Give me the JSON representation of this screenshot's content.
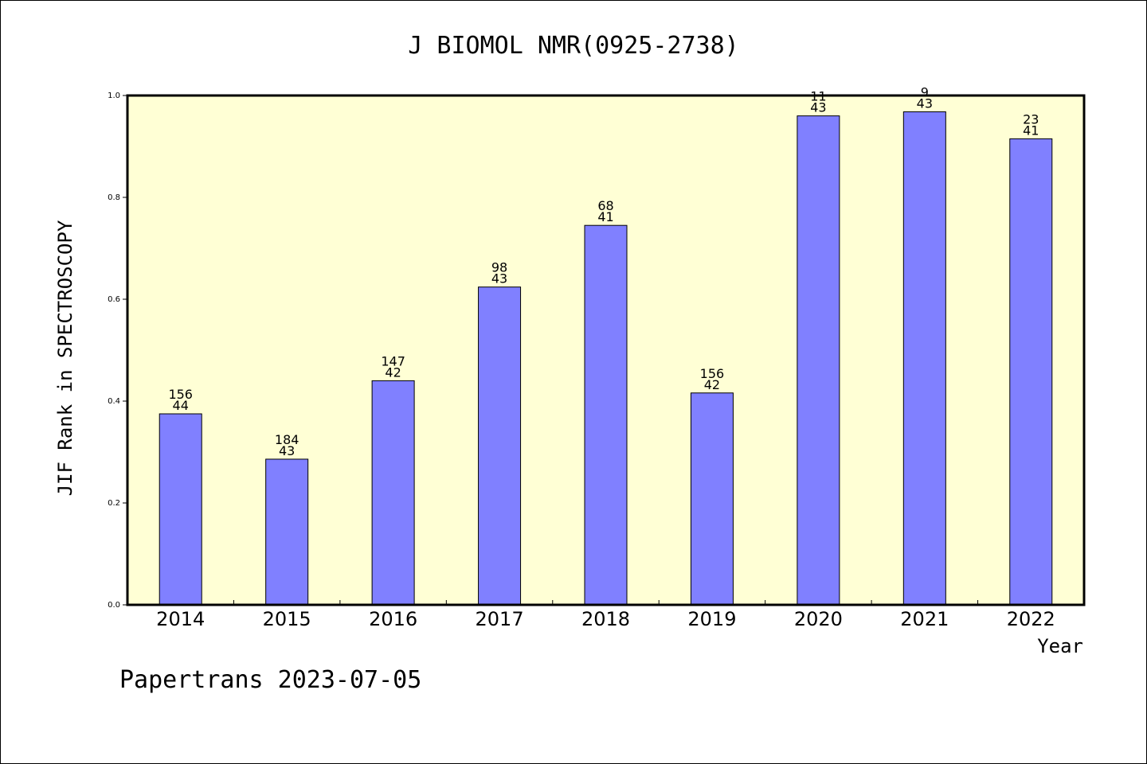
{
  "chart_data": {
    "type": "bar",
    "title": "J BIOMOL NMR(0925-2738)",
    "xlabel": "Year",
    "ylabel": "JIF Rank in SPECTROSCOPY",
    "ylim": [
      0,
      1.0
    ],
    "yticks": [
      "0.0",
      "0.2",
      "0.4",
      "0.6",
      "0.8",
      "1.0"
    ],
    "grid": false,
    "categories": [
      "2014",
      "2015",
      "2016",
      "2017",
      "2018",
      "2019",
      "2020",
      "2021",
      "2022"
    ],
    "values": [
      0.375,
      0.286,
      0.44,
      0.624,
      0.745,
      0.416,
      0.96,
      0.968,
      0.915
    ],
    "data_labels": [
      [
        "156",
        "44"
      ],
      [
        "184",
        "43"
      ],
      [
        "147",
        "42"
      ],
      [
        "98",
        "43"
      ],
      [
        "68",
        "41"
      ],
      [
        "156",
        "42"
      ],
      [
        "11",
        "43"
      ],
      [
        "9",
        "43"
      ],
      [
        "23",
        "41"
      ]
    ],
    "colors": {
      "plot_background": "#ffffd5",
      "bar_fill": "#8080ff",
      "bar_stroke": "#000000"
    }
  },
  "footer": "Papertrans 2023-07-05"
}
